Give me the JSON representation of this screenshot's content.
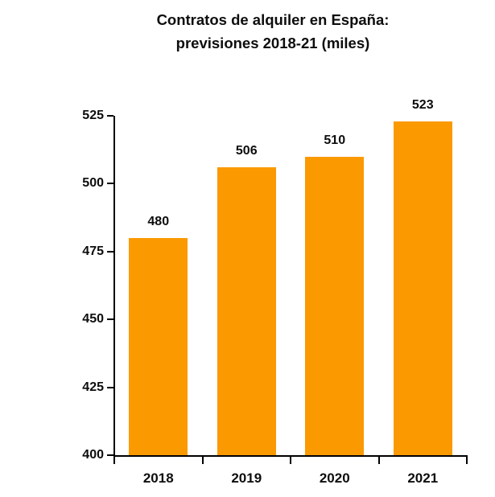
{
  "title": {
    "line1": "Contratos de alquiler en España:",
    "line2": "previsiones 2018-21 (miles)"
  },
  "chart_data": {
    "type": "bar",
    "title": "Contratos de alquiler en España: previsiones 2018-21 (miles)",
    "categories": [
      "2018",
      "2019",
      "2020",
      "2021"
    ],
    "values": [
      480,
      506,
      510,
      523
    ],
    "data_labels": [
      "480",
      "506",
      "510",
      "523"
    ],
    "xlabel": "",
    "ylabel": "",
    "ylim": [
      400,
      525
    ],
    "yticks": [
      400,
      425,
      450,
      475,
      500,
      525
    ],
    "grid": false,
    "legend": false,
    "bar_color": "#FB9900",
    "axis_color": "#000000",
    "text_color": "#0d0d0d",
    "background_color": "#ffffff"
  }
}
